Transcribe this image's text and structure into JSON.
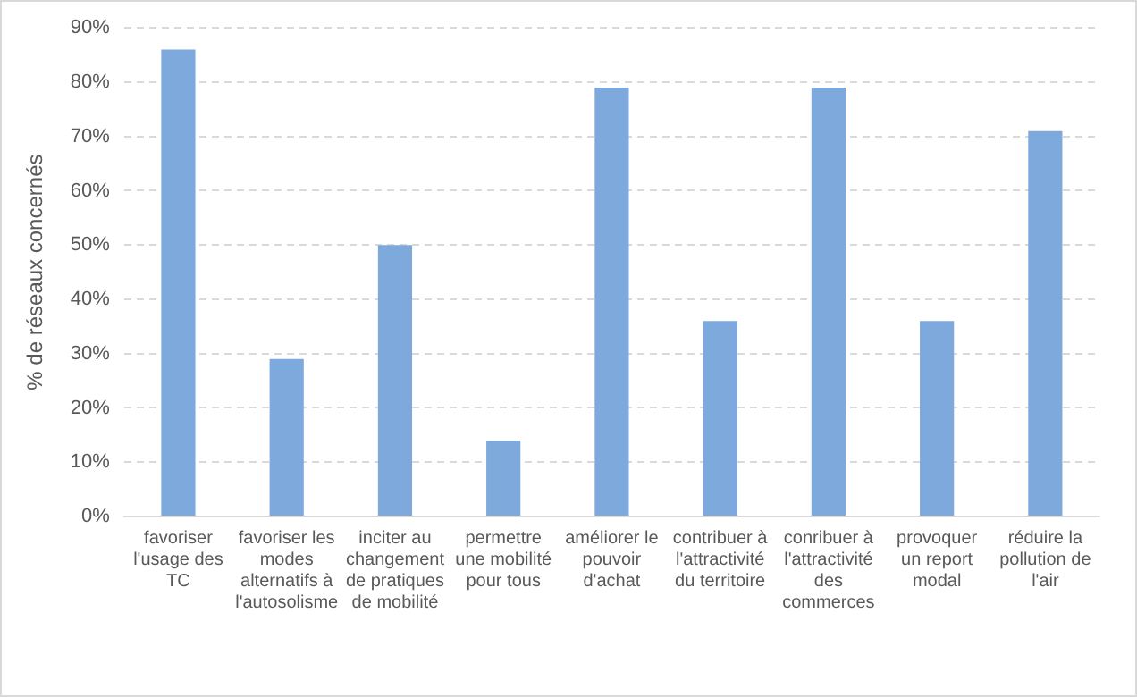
{
  "chart_data": {
    "type": "bar",
    "ylabel": "% de réseaux concernés",
    "categories": [
      "favoriser l'usage des TC",
      "favoriser les modes alternatifs à l'autosolisme",
      "inciter au changement de pratiques de mobilité",
      "permettre une mobilité pour tous",
      "améliorer le pouvoir d'achat",
      "contribuer à l'attractivité du territoire",
      "conribuer à l'attractivité des commerces",
      "provoquer un report modal",
      "réduire la pollution de l'air"
    ],
    "values": [
      86,
      29,
      50,
      14,
      79,
      36,
      79,
      36,
      71
    ],
    "color": "#7ea9dc",
    "ylim": [
      0,
      90
    ],
    "yticks": [
      {
        "value": 0,
        "label": "0%"
      },
      {
        "value": 10,
        "label": "10%"
      },
      {
        "value": 20,
        "label": "20%"
      },
      {
        "value": 30,
        "label": "30%"
      },
      {
        "value": 40,
        "label": "40%"
      },
      {
        "value": 50,
        "label": "50%"
      },
      {
        "value": 60,
        "label": "60%"
      },
      {
        "value": 70,
        "label": "70%"
      },
      {
        "value": 80,
        "label": "80%"
      },
      {
        "value": 90,
        "label": "90%"
      }
    ],
    "grid": "y",
    "legend": false
  }
}
